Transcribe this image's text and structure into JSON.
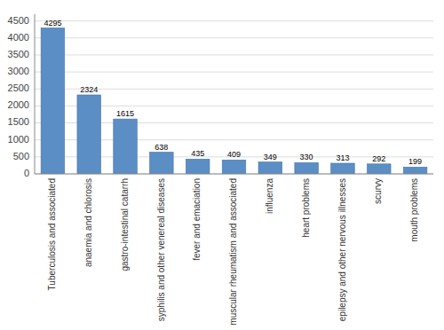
{
  "chart_data": {
    "type": "bar",
    "categories": [
      "Tuberculosis and associated",
      "anaemia and chlorosis",
      "gastro-intestinal catarrh",
      "syphilis and other venereal diseases",
      "fever and emaciation",
      "muscular rheumatism and associated",
      "influenza",
      "heart problems",
      "epilepsy and other nervous illnesses",
      "scurvy",
      "mouth problems"
    ],
    "values": [
      4295,
      2324,
      1615,
      638,
      435,
      409,
      349,
      330,
      313,
      292,
      199
    ],
    "color": "#5b8ec4",
    "ylim": [
      0,
      4700
    ],
    "yticks": [
      0,
      500,
      1000,
      1500,
      2000,
      2500,
      3000,
      3500,
      4000,
      4500
    ],
    "grid": true,
    "data_labels": true
  }
}
